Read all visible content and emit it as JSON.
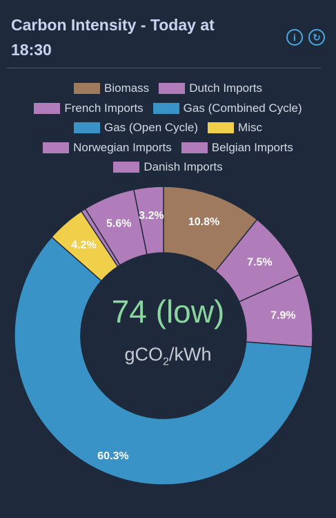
{
  "header": {
    "title": "Carbon Intensity - Today at 18:30",
    "info_icon": "info-icon",
    "refresh_icon": "refresh-icon"
  },
  "center": {
    "value": "74 (low)",
    "unit_prefix": "gCO",
    "unit_sub": "2",
    "unit_suffix": "/kWh"
  },
  "chart_data": {
    "type": "pie",
    "variant": "doughnut",
    "legend_position": "top",
    "series": [
      {
        "name": "Biomass",
        "value": 10.8,
        "label": "10.8%",
        "color": "#a07a5e"
      },
      {
        "name": "Dutch Imports",
        "value": 7.5,
        "label": "7.5%",
        "color": "#b07cba"
      },
      {
        "name": "French Imports",
        "value": 7.9,
        "label": "7.9%",
        "color": "#b07cba"
      },
      {
        "name": "Gas (Combined Cycle)",
        "value": 60.3,
        "label": "60.3%",
        "color": "#3a93c7"
      },
      {
        "name": "Gas (Open Cycle)",
        "value": 0.0,
        "label": "",
        "color": "#3a93c7"
      },
      {
        "name": "Misc",
        "value": 4.2,
        "label": "4.2%",
        "color": "#f0cf4a"
      },
      {
        "name": "Norwegian Imports",
        "value": 0.5,
        "label": "",
        "color": "#b07cba"
      },
      {
        "name": "Belgian Imports",
        "value": 5.6,
        "label": "5.6%",
        "color": "#b07cba"
      },
      {
        "name": "Danish Imports",
        "value": 3.2,
        "label": "3.2%",
        "color": "#b07cba"
      }
    ]
  },
  "legend_rows": [
    [
      0,
      1
    ],
    [
      2,
      3
    ],
    [
      4,
      5
    ],
    [
      6,
      7
    ],
    [
      8
    ]
  ]
}
